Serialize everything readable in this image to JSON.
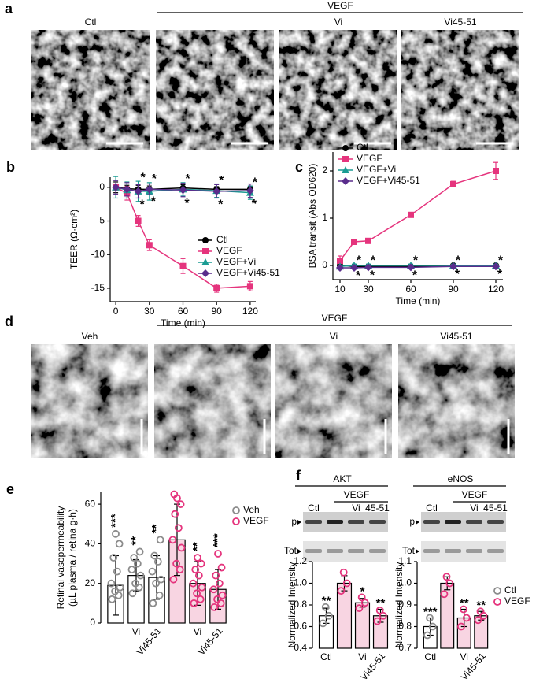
{
  "panel_a": {
    "letter": "a",
    "group_label": "VEGF",
    "image_labels": [
      "Ctl",
      "Vi",
      "Vi45-51"
    ]
  },
  "panel_d": {
    "letter": "d",
    "group_label": "VEGF",
    "image_labels": [
      "Veh",
      "Vi",
      "Vi45-51"
    ]
  },
  "panel_f_blots": [
    {
      "letter": "f",
      "protein": "AKT",
      "group_label": "VEGF",
      "lanes": [
        "Ctl",
        "Vi",
        "45-51"
      ],
      "rows": [
        "p",
        "Tot"
      ]
    },
    {
      "protein": "eNOS",
      "group_label": "VEGF",
      "lanes": [
        "Ctl",
        "Vi",
        "45-51"
      ],
      "rows": [
        "p",
        "Tot"
      ]
    }
  ],
  "chart_data": [
    {
      "type": "line",
      "panel": "b",
      "xlabel": "Time (min)",
      "ylabel": "TEER (Ω·cm²)",
      "x": [
        0,
        10,
        20,
        30,
        60,
        90,
        120
      ],
      "xlim": [
        -5,
        125
      ],
      "xticks": [
        0,
        30,
        60,
        90,
        120
      ],
      "ylim": [
        -17,
        1.5
      ],
      "yticks": [
        0,
        -5,
        -10,
        -15
      ],
      "legend_position": "lower right",
      "series": [
        {
          "name": "Ctl",
          "color": "#000000",
          "marker": "circle",
          "values": [
            0,
            -0.2,
            -0.3,
            -0.3,
            -0.1,
            -0.3,
            -0.3
          ],
          "errors": [
            0.8,
            0.5,
            0.6,
            0.5,
            0.5,
            0.4,
            0.4
          ]
        },
        {
          "name": "VEGF",
          "color": "#e5347d",
          "marker": "square",
          "values": [
            0,
            -0.9,
            -5,
            -8.6,
            -11.7,
            -15,
            -14.7
          ],
          "errors": [
            0.5,
            1,
            0.8,
            0.8,
            1.1,
            0.6,
            0.7
          ]
        },
        {
          "name": "VEGF+Vi",
          "color": "#1b9c93",
          "marker": "triangle",
          "values": [
            0,
            -0.4,
            -0.6,
            -0.6,
            -0.3,
            -0.5,
            -0.8
          ],
          "errors": [
            1.6,
            1.2,
            1.5,
            1.3,
            1,
            1,
            1
          ],
          "significance": [
            null,
            null,
            "*",
            "*",
            "*",
            "*",
            "*"
          ],
          "significance_position": "above"
        },
        {
          "name": "VEGF+Vi45-51",
          "color": "#5a2d8c",
          "marker": "diamond",
          "values": [
            0,
            -0.3,
            -0.6,
            -0.3,
            -0.4,
            -0.6,
            -0.5
          ],
          "errors": [
            1,
            1,
            1,
            0.8,
            1,
            1,
            1
          ],
          "significance": [
            null,
            null,
            "*",
            "*",
            "*",
            "*",
            "*"
          ],
          "significance_position": "below"
        }
      ]
    },
    {
      "type": "line",
      "panel": "c",
      "xlabel": "Time (min)",
      "ylabel": "BSA transit (Abs OD620)",
      "x": [
        10,
        20,
        30,
        60,
        90,
        120
      ],
      "xlim": [
        5,
        125
      ],
      "xticks": [
        10,
        30,
        60,
        90,
        120
      ],
      "ylim": [
        -0.3,
        2.4
      ],
      "yticks": [
        0,
        1,
        2
      ],
      "legend_position": "upper left",
      "series": [
        {
          "name": "Ctl",
          "color": "#000000",
          "marker": "circle",
          "values": [
            0,
            -0.02,
            -0.02,
            -0.02,
            0,
            0
          ],
          "errors": [
            0.03,
            0.03,
            0.03,
            0.03,
            0.03,
            0.03
          ]
        },
        {
          "name": "VEGF",
          "color": "#e5347d",
          "marker": "square",
          "values": [
            0.1,
            0.5,
            0.52,
            1.07,
            1.72,
            2
          ],
          "errors": [
            0.1,
            0.05,
            0.05,
            0.05,
            0.06,
            0.18
          ]
        },
        {
          "name": "VEGF+Vi",
          "color": "#1b9c93",
          "marker": "triangle",
          "values": [
            -0.02,
            0,
            0,
            0,
            0,
            0
          ],
          "errors": [
            0.03,
            0.03,
            0.03,
            0.03,
            0.03,
            0.03
          ],
          "significance": [
            null,
            "*",
            "*",
            "*",
            "*",
            "*"
          ],
          "significance_position": "above"
        },
        {
          "name": "VEGF+Vi45-51",
          "color": "#5a2d8c",
          "marker": "diamond",
          "values": [
            -0.05,
            -0.05,
            -0.04,
            -0.04,
            -0.02,
            -0.02
          ],
          "errors": [
            0.03,
            0.03,
            0.03,
            0.03,
            0.03,
            0.03
          ],
          "significance": [
            null,
            "*",
            "*",
            "*",
            "*",
            "*"
          ],
          "significance_position": "below"
        }
      ]
    },
    {
      "type": "bar",
      "panel": "e",
      "ylabel": [
        "Retinal vasopermeability",
        "(µL plasma / retina g·h)"
      ],
      "categories": [
        null,
        "Vi",
        "Vi45-51",
        null,
        "Vi",
        "Vi45-51"
      ],
      "values": [
        19,
        24,
        23,
        42,
        20,
        17
      ],
      "errors": [
        15,
        8,
        11,
        18,
        11,
        10
      ],
      "points": [
        [
          12,
          14,
          16,
          18,
          20,
          26,
          33,
          40,
          45
        ],
        [
          15,
          18,
          20,
          24,
          27,
          30,
          33,
          36
        ],
        [
          10,
          14,
          20,
          22,
          26,
          31,
          34,
          42
        ],
        [
          22,
          27,
          30,
          38,
          42,
          48,
          55,
          60,
          63,
          65
        ],
        [
          10,
          12,
          15,
          18,
          20,
          24,
          27,
          30,
          33
        ],
        [
          8,
          10,
          12,
          14,
          17,
          20,
          24,
          28,
          35
        ]
      ],
      "significance": [
        "***",
        "**",
        "**",
        null,
        "**",
        "***"
      ],
      "bar_colors": [
        "#ffffff",
        "#ffffff",
        "#ffffff",
        "#f8d5e2",
        "#f8d5e2",
        "#f8d5e2"
      ],
      "point_colors": [
        "#8c8c8c",
        "#8c8c8c",
        "#8c8c8c",
        "#e5347d",
        "#e5347d",
        "#e5347d"
      ],
      "ylim": [
        0,
        66
      ],
      "yticks": [
        0,
        20,
        40,
        60
      ],
      "legend": [
        {
          "name": "Veh",
          "color": "#8c8c8c"
        },
        {
          "name": "VEGF",
          "color": "#e5347d"
        }
      ],
      "legend_position": "upper right"
    },
    {
      "type": "bar",
      "ylabel": "Normalized Intensity",
      "categories": [
        "Ctl",
        null,
        "Vi",
        "Vi45-51"
      ],
      "values": [
        0.7,
        1,
        0.82,
        0.7
      ],
      "errors": [
        0.07,
        0.07,
        0.04,
        0.06
      ],
      "points": [
        [
          0.63,
          0.7,
          0.78
        ],
        [
          0.93,
          1,
          1.1
        ],
        [
          0.77,
          0.82,
          0.87
        ],
        [
          0.65,
          0.7,
          0.75
        ]
      ],
      "significance": [
        "**",
        null,
        "*",
        "**"
      ],
      "bar_colors": [
        "#ffffff",
        "#f8d5e2",
        "#f8d5e2",
        "#f8d5e2"
      ],
      "point_colors": [
        "#8c8c8c",
        "#e5347d",
        "#e5347d",
        "#e5347d"
      ],
      "ylim": [
        0.4,
        1.2
      ],
      "yticks": [
        0.4,
        0.6,
        0.8,
        {
          "value": 1,
          "label": "1.0"
        },
        1.2
      ]
    },
    {
      "type": "bar",
      "ylabel": "Normalized Intensity",
      "categories": [
        "Ctl",
        null,
        "Vi",
        "Vi45-51"
      ],
      "values": [
        0.8,
        1,
        0.84,
        0.85
      ],
      "errors": [
        0.04,
        0.03,
        0.04,
        0.02
      ],
      "points": [
        [
          0.76,
          0.8,
          0.84
        ],
        [
          0.95,
          1,
          1.03
        ],
        [
          0.8,
          0.84,
          0.88
        ],
        [
          0.83,
          0.85,
          0.87
        ]
      ],
      "significance": [
        "***",
        null,
        "**",
        "**"
      ],
      "bar_colors": [
        "#ffffff",
        "#f8d5e2",
        "#f8d5e2",
        "#f8d5e2"
      ],
      "point_colors": [
        "#8c8c8c",
        "#e5347d",
        "#e5347d",
        "#e5347d"
      ],
      "ylim": [
        0.7,
        1.1
      ],
      "yticks": [
        0.7,
        0.8,
        0.9,
        {
          "value": 1,
          "label": "1.0"
        },
        1.1
      ],
      "legend": [
        {
          "name": "Ctl",
          "color": "#8c8c8c"
        },
        {
          "name": "VEGF",
          "color": "#e5347d"
        }
      ],
      "legend_position": "upper right"
    }
  ]
}
